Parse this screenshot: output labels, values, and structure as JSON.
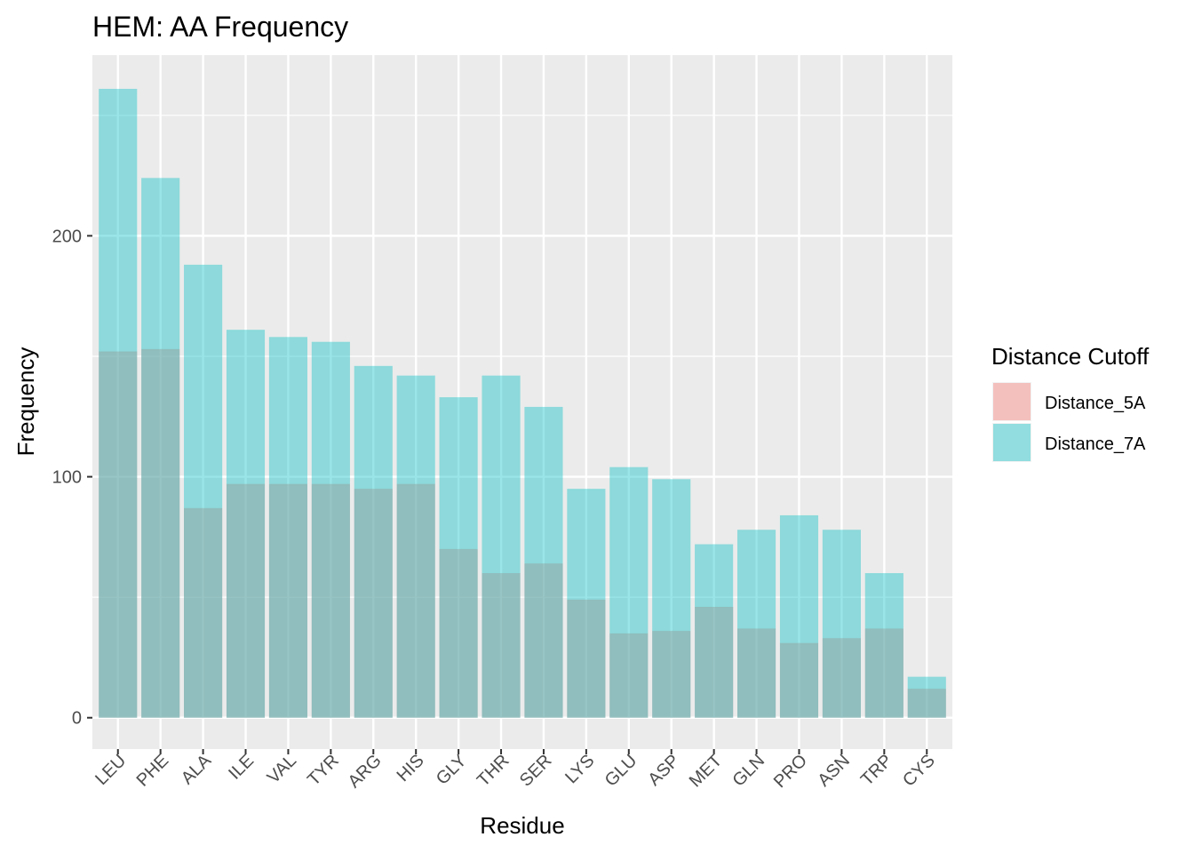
{
  "chart_data": {
    "type": "bar",
    "title": "HEM: AA Frequency",
    "xlabel": "Residue",
    "ylabel": "Frequency",
    "ylim": [
      -13,
      275
    ],
    "yticks": [
      0,
      100,
      200
    ],
    "grid": true,
    "legend": {
      "title": "Distance Cutoff",
      "placement": "right"
    },
    "categories": [
      "LEU",
      "PHE",
      "ALA",
      "ILE",
      "VAL",
      "TYR",
      "ARG",
      "HIS",
      "GLY",
      "THR",
      "SER",
      "LYS",
      "GLU",
      "ASP",
      "MET",
      "GLN",
      "PRO",
      "ASN",
      "TRP",
      "CYS"
    ],
    "series": [
      {
        "name": "Distance_5A",
        "color": "#F8766D",
        "alpha": 0.4,
        "values": [
          152,
          153,
          87,
          97,
          97,
          97,
          95,
          97,
          70,
          60,
          64,
          49,
          35,
          36,
          46,
          37,
          31,
          33,
          37,
          12
        ]
      },
      {
        "name": "Distance_7A",
        "color": "#00BFC4",
        "alpha": 0.4,
        "values": [
          261,
          224,
          188,
          161,
          158,
          156,
          146,
          142,
          133,
          142,
          129,
          95,
          104,
          99,
          72,
          78,
          84,
          78,
          60,
          17
        ]
      }
    ]
  }
}
